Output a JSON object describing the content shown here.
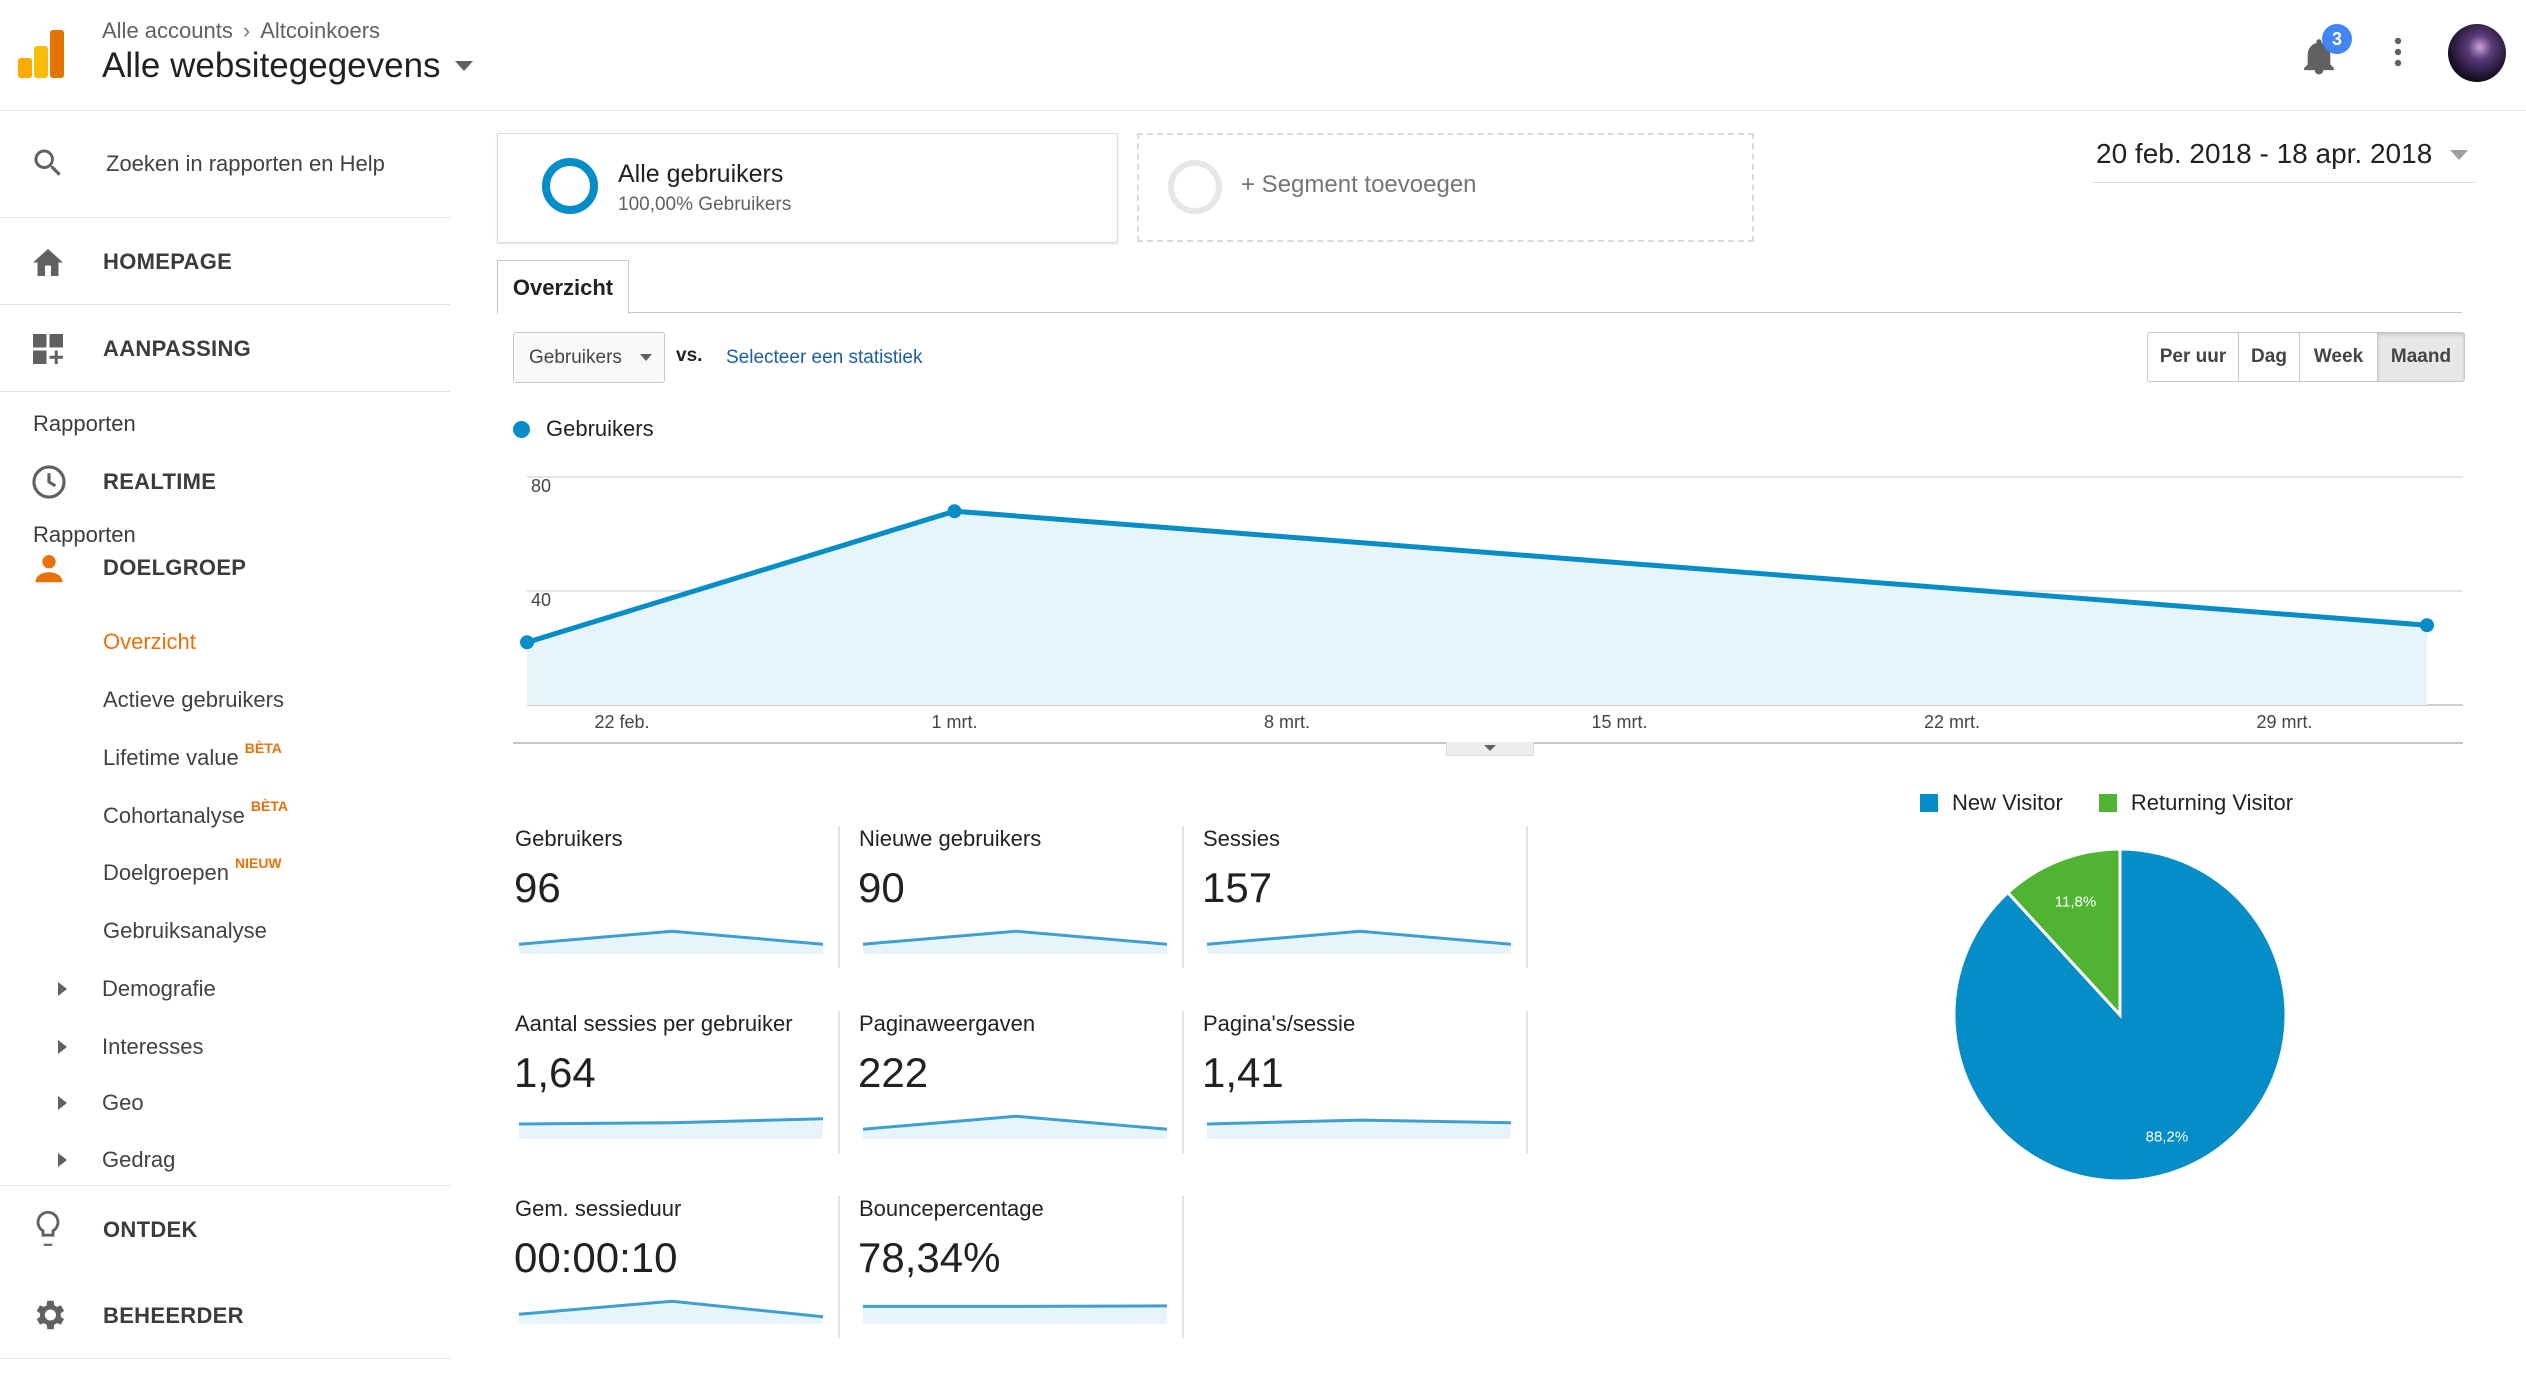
{
  "header": {
    "breadcrumb": [
      "Alle accounts",
      "Altcoinkoers"
    ],
    "title": "Alle websitegegevens",
    "notification_count": "3"
  },
  "sidebar": {
    "search_placeholder": "Zoeken in rapporten en Help",
    "top_items": [
      {
        "label": "HOMEPAGE",
        "icon": "home-icon"
      },
      {
        "label": "AANPASSING",
        "icon": "dashboard-icon"
      }
    ],
    "section_label": "Rapporten",
    "realtime": "REALTIME",
    "doelgroep": "DOELGROEP",
    "sub_items": [
      "Overzicht",
      "Actieve gebruikers",
      "Lifetime value",
      "Cohortanalyse",
      "Doelgroepen",
      "Gebruiksanalyse"
    ],
    "badges": {
      "lifetime": "BÈTA",
      "cohort": "BÈTA",
      "doelgroepen": "NIEUW"
    },
    "expandable": [
      "Demografie",
      "Interesses",
      "Geo",
      "Gedrag"
    ],
    "ontdek": "ONTDEK",
    "beheerder": "BEHEERDER"
  },
  "segments": {
    "active_name": "Alle gebruikers",
    "active_sub": "100,00% Gebruikers",
    "add_label": "+ Segment toevoegen"
  },
  "date_range": "20 feb. 2018 - 18 apr. 2018",
  "tabs": [
    "Overzicht"
  ],
  "controls": {
    "metric_select": "Gebruikers",
    "vs": "vs.",
    "select_stat": "Selecteer een statistiek",
    "granularity": [
      "Per uur",
      "Dag",
      "Week",
      "Maand"
    ],
    "selected_granularity": "Maand"
  },
  "chart_data": [
    {
      "type": "area",
      "series": [
        {
          "name": "Gebruikers",
          "x": [
            "2018-02-20",
            "2018-03-01",
            "2018-04-01"
          ],
          "values": [
            22,
            68,
            28
          ]
        }
      ],
      "y_ticks": [
        "40",
        "80"
      ],
      "ylim": [
        0,
        80
      ],
      "x_ticks": [
        "22 feb.",
        "1 mrt.",
        "8 mrt.",
        "15 mrt.",
        "22 mrt.",
        "29 mrt."
      ],
      "color": "#058dc7",
      "legend": "top-left"
    },
    {
      "type": "pie",
      "categories": [
        "New Visitor",
        "Returning Visitor"
      ],
      "values": [
        88.2,
        11.8
      ],
      "labels": [
        "88,2%",
        "11,8%"
      ],
      "colors": [
        "#058dc7",
        "#50b432"
      ],
      "legend": "top"
    }
  ],
  "metrics": [
    {
      "label": "Gebruikers",
      "value": "96",
      "spark": [
        0.3,
        0.8,
        0.3
      ]
    },
    {
      "label": "Nieuwe gebruikers",
      "value": "90",
      "spark": [
        0.3,
        0.8,
        0.3
      ]
    },
    {
      "label": "Sessies",
      "value": "157",
      "spark": [
        0.3,
        0.8,
        0.3
      ]
    },
    {
      "label": "Aantal sessies per gebruiker",
      "value": "1,64",
      "spark": [
        0.5,
        0.55,
        0.7
      ]
    },
    {
      "label": "Paginaweergaven",
      "value": "222",
      "spark": [
        0.3,
        0.8,
        0.3
      ]
    },
    {
      "label": "Pagina's/sessie",
      "value": "1,41",
      "spark": [
        0.5,
        0.65,
        0.55
      ]
    },
    {
      "label": "Gem. sessieduur",
      "value": "00:00:10",
      "spark": [
        0.3,
        0.8,
        0.2
      ]
    },
    {
      "label": "Bouncepercentage",
      "value": "78,34%",
      "spark": [
        0.6,
        0.6,
        0.62
      ]
    }
  ]
}
